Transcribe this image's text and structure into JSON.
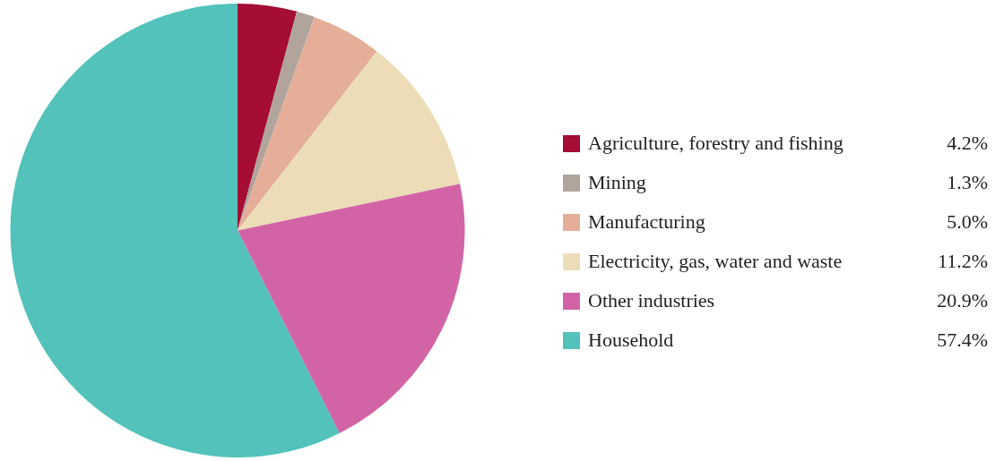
{
  "chart_data": {
    "type": "pie",
    "categories": [
      "Agriculture, forestry and fishing",
      "Mining",
      "Manufacturing",
      "Electricity, gas, water and waste",
      "Other industries",
      "Household"
    ],
    "values": [
      4.2,
      1.3,
      5.0,
      11.2,
      20.9,
      57.4
    ],
    "value_labels": [
      "4.2%",
      "1.3%",
      "5.0%",
      "11.2%",
      "20.9%",
      "57.4%"
    ],
    "colors": [
      "#a50d35",
      "#b0a49c",
      "#e4ae98",
      "#ecddb8",
      "#d264a6",
      "#52c2bb"
    ],
    "legend": "right"
  }
}
